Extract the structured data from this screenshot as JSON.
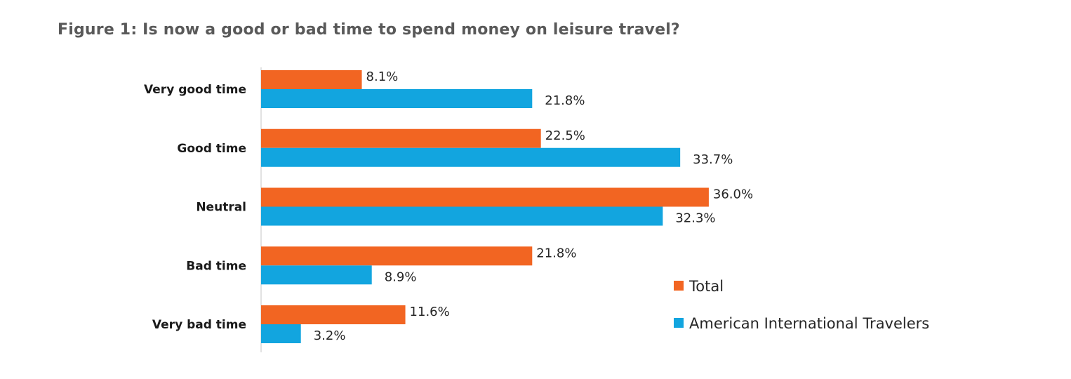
{
  "chart_data": {
    "type": "bar",
    "orientation": "horizontal",
    "title": "Figure 1: Is now a good or bad time to spend money on leisure travel?",
    "categories": [
      "Very good time",
      "Good time",
      "Neutral",
      "Bad time",
      "Very bad time"
    ],
    "series": [
      {
        "name": "Total",
        "color": "#f26522",
        "values": [
          8.1,
          22.5,
          36.0,
          21.8,
          11.6
        ],
        "labels": [
          "8.1%",
          "22.5%",
          "36.0%",
          "21.8%",
          "11.6%"
        ]
      },
      {
        "name": "American International Travelers",
        "color": "#12a5df",
        "values": [
          21.8,
          33.7,
          32.3,
          8.9,
          3.2
        ],
        "labels": [
          "21.8%",
          "33.7%",
          "32.3%",
          "8.9%",
          "3.2%"
        ]
      }
    ],
    "xlim": [
      0,
      40
    ],
    "grid": false,
    "legend_position": "bottom-right"
  }
}
